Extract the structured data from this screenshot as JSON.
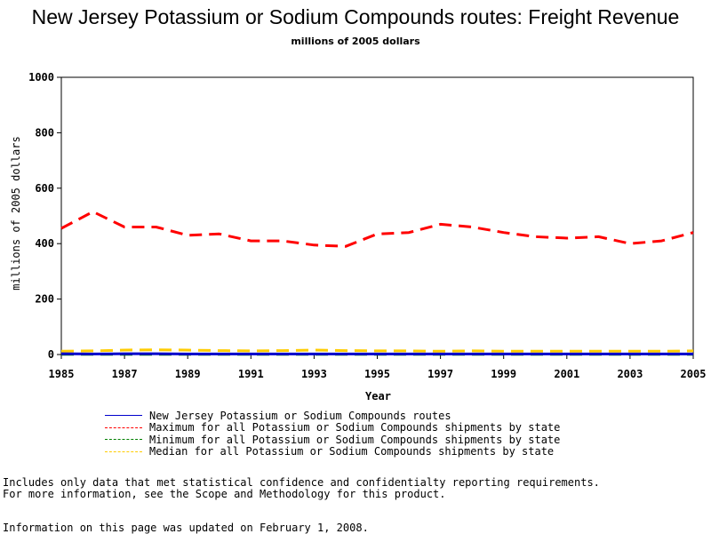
{
  "header": {
    "title": "New Jersey Potassium or Sodium Compounds routes: Freight Revenue",
    "subtitle": "millions of 2005 dollars"
  },
  "chart_data": {
    "type": "line",
    "xlabel": "Year",
    "ylabel": "millions of 2005 dollars",
    "xlim": [
      1985,
      2005
    ],
    "ylim": [
      0,
      1000
    ],
    "x_ticks": [
      1985,
      1987,
      1989,
      1991,
      1993,
      1995,
      1997,
      1999,
      2001,
      2003,
      2005
    ],
    "y_ticks": [
      0,
      200,
      400,
      600,
      800,
      1000
    ],
    "x": [
      1985,
      1986,
      1987,
      1988,
      1989,
      1990,
      1991,
      1992,
      1993,
      1994,
      1995,
      1996,
      1997,
      1998,
      1999,
      2000,
      2001,
      2002,
      2003,
      2004,
      2005
    ],
    "series": [
      {
        "name": "New Jersey Potassium or Sodium Compounds routes",
        "color": "#0000cc",
        "dash": "solid",
        "values": [
          3,
          2,
          3,
          3,
          2,
          2,
          2,
          2,
          2,
          2,
          2,
          2,
          2,
          2,
          2,
          2,
          2,
          2,
          2,
          2,
          2
        ]
      },
      {
        "name": "Maximum for all Potassium or Sodium Compounds shipments by state",
        "color": "#ff0000",
        "dash": "dashed",
        "values": [
          455,
          515,
          460,
          460,
          430,
          435,
          410,
          410,
          395,
          390,
          435,
          440,
          470,
          460,
          440,
          425,
          420,
          425,
          400,
          410,
          440
        ]
      },
      {
        "name": "Minimum for all Potassium or Sodium Compounds shipments by state",
        "color": "#008000",
        "dash": "dashed",
        "values": [
          1,
          1,
          1,
          1,
          1,
          1,
          1,
          1,
          1,
          1,
          1,
          1,
          1,
          1,
          1,
          1,
          1,
          1,
          1,
          1,
          1
        ]
      },
      {
        "name": "Median for all Potassium or Sodium Compounds shipments by state",
        "color": "#ffcc00",
        "dash": "dashed",
        "values": [
          12,
          13,
          16,
          17,
          16,
          14,
          13,
          14,
          16,
          14,
          13,
          13,
          12,
          13,
          12,
          12,
          12,
          12,
          12,
          12,
          13
        ]
      }
    ]
  },
  "notes": {
    "line1": "Includes only data that met statistical confidence and confidentialty reporting requirements.",
    "line2": "For more information, see the Scope and Methodology for this product.",
    "updated": "Information on this page was updated on February 1, 2008."
  }
}
